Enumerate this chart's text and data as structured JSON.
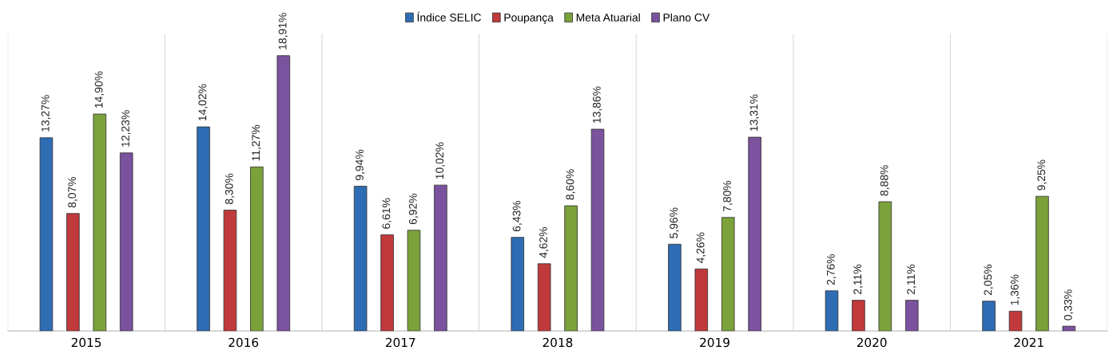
{
  "chart_data": {
    "type": "bar",
    "categories": [
      "2015",
      "2016",
      "2017",
      "2018",
      "2019",
      "2020",
      "2021"
    ],
    "series": [
      {
        "name": "Índice SELIC",
        "color": "#2e6db4",
        "values": [
          13.27,
          14.02,
          9.94,
          6.43,
          5.96,
          2.76,
          2.05
        ],
        "value_labels": [
          "13,27%",
          "14,02%",
          "9,94%",
          "6,43%",
          "5,96%",
          "2,76%",
          "2,05%"
        ]
      },
      {
        "name": "Poupança",
        "color": "#c0393b",
        "values": [
          8.07,
          8.3,
          6.61,
          4.62,
          4.26,
          2.11,
          1.36
        ],
        "value_labels": [
          "8,07%",
          "8,30%",
          "6,61%",
          "4,62%",
          "4,26%",
          "2,11%",
          "1,36%"
        ]
      },
      {
        "name": "Meta Atuarial",
        "color": "#7ba23a",
        "values": [
          14.9,
          11.27,
          6.92,
          8.6,
          7.8,
          8.88,
          9.25
        ],
        "value_labels": [
          "14,90%",
          "11,27%",
          "6,92%",
          "8,60%",
          "7,80%",
          "8,88%",
          "9,25%"
        ]
      },
      {
        "name": "Plano CV",
        "color": "#7b529e",
        "values": [
          12.23,
          18.91,
          10.02,
          13.86,
          13.31,
          2.11,
          0.33
        ],
        "value_labels": [
          "12,23%",
          "18,91%",
          "10,02%",
          "13,86%",
          "13,31%",
          "2,11%",
          "0,33%"
        ]
      }
    ],
    "grid": "x",
    "legend": "top"
  }
}
